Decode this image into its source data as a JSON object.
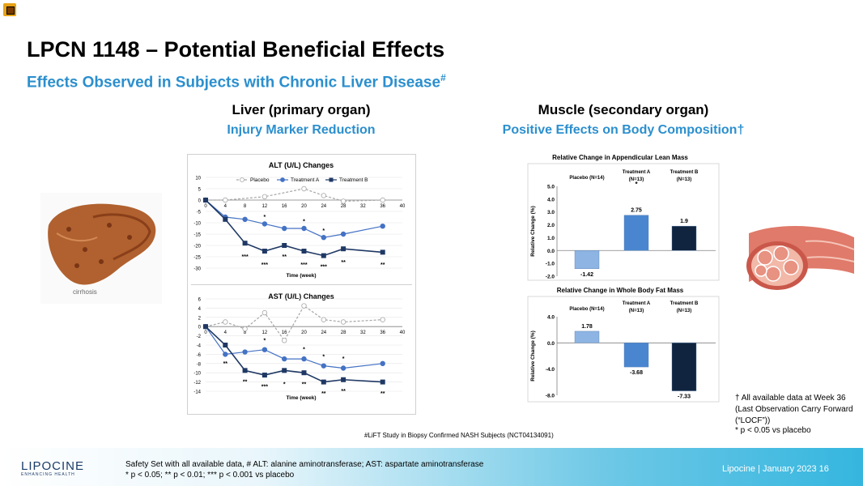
{
  "slide": {
    "title": "LPCN 1148 – Potential Beneficial Effects",
    "subtitle": "Effects Observed in Subjects with Chronic Liver Disease",
    "subtitle_mark": "#",
    "liver_heading": "Liver  (primary organ)",
    "liver_subheading": "Injury Marker Reduction",
    "muscle_heading": "Muscle  (secondary organ)",
    "muscle_subheading": "Positive Effects on Body Composition†",
    "liver_image_caption": "cirrhosis",
    "study_note": "#LiFT Study in Biopsy Confirmed NASH Subjects (NCT04134091)",
    "right_note_1": "† All available data at Week 36 (Last Observation Carry Forward (“LOCF”))",
    "right_note_2": "* p < 0.05 vs placebo",
    "footer_line_1": "Safety Set with all available data,  # ALT:  alanine aminotransferase; AST: aspartate aminotransferase",
    "footer_line_2": "* p < 0.05; ** p < 0.01; *** p < 0.001 vs placebo",
    "brand": "LIPOCINE",
    "brand_tagline": "ENHANCING HEALTH",
    "footer_right": "Lipocine  |   January 2023     16"
  },
  "colors": {
    "placebo": "#a6a6a6",
    "treatment_a": "#4472c4",
    "treatment_b": "#1f3864",
    "accent": "#2b8fce",
    "bar_placebo": "#8db4e2",
    "bar_a": "#4a86d0",
    "bar_b": "#10243f"
  },
  "chart_data": [
    {
      "type": "line",
      "title": "ALT (U/L) Changes",
      "xlabel": "Time (week)",
      "x": [
        0,
        4,
        8,
        12,
        16,
        20,
        24,
        28,
        32,
        36
      ],
      "xticks": [
        0,
        4,
        8,
        12,
        16,
        20,
        24,
        28,
        32,
        36,
        40
      ],
      "yticks": [
        10,
        5,
        0,
        -5,
        -10,
        -15,
        -20,
        -25,
        -30
      ],
      "ylim": [
        -30,
        10
      ],
      "legend": "top",
      "series": [
        {
          "name": "Placebo",
          "x": [
            0,
            4,
            12,
            20,
            24,
            28,
            36
          ],
          "values": [
            0,
            0,
            1.5,
            5,
            2,
            -0.5,
            0
          ]
        },
        {
          "name": "Treatment A",
          "x": [
            0,
            4,
            8,
            12,
            16,
            20,
            24,
            28,
            36
          ],
          "values": [
            0,
            -7.5,
            -8.5,
            -10.5,
            -12.5,
            -12.5,
            -16.5,
            -15,
            -11.5
          ]
        },
        {
          "name": "Treatment B",
          "x": [
            0,
            4,
            8,
            12,
            16,
            20,
            24,
            28,
            36
          ],
          "values": [
            0,
            -8.5,
            -19,
            -22.5,
            -20,
            -22.5,
            -24.5,
            -21.5,
            -23
          ]
        }
      ],
      "annotations": [
        {
          "x": 12,
          "y": -7.5,
          "text": "*"
        },
        {
          "x": 20,
          "y": -9.5,
          "text": "*"
        },
        {
          "x": 24,
          "y": -13.5,
          "text": "*"
        },
        {
          "x": 8,
          "y": -25,
          "text": "***"
        },
        {
          "x": 12,
          "y": -28.5,
          "text": "***"
        },
        {
          "x": 16,
          "y": -25,
          "text": "**"
        },
        {
          "x": 20,
          "y": -28.5,
          "text": "***"
        },
        {
          "x": 24,
          "y": -29.5,
          "text": "***"
        },
        {
          "x": 28,
          "y": -27.5,
          "text": "**"
        },
        {
          "x": 36,
          "y": -28.5,
          "text": "**"
        }
      ]
    },
    {
      "type": "line",
      "title": "AST (U/L) Changes",
      "xlabel": "Time (week)",
      "x": [
        0,
        4,
        8,
        12,
        16,
        20,
        24,
        28,
        32,
        36
      ],
      "xticks": [
        0,
        4,
        8,
        12,
        16,
        20,
        24,
        28,
        32,
        36,
        40
      ],
      "yticks": [
        6,
        4,
        2,
        0,
        -2,
        -4,
        -6,
        -8,
        -10,
        -12,
        -14
      ],
      "ylim": [
        -14,
        6
      ],
      "series": [
        {
          "name": "Placebo",
          "x": [
            0,
            4,
            8,
            12,
            16,
            20,
            24,
            28,
            36
          ],
          "values": [
            0,
            1,
            -0.5,
            3,
            -3,
            4.5,
            1.5,
            1,
            1.5
          ]
        },
        {
          "name": "Treatment A",
          "x": [
            0,
            4,
            8,
            12,
            16,
            20,
            24,
            28,
            36
          ],
          "values": [
            0,
            -6,
            -5.5,
            -5,
            -7,
            -7,
            -8.5,
            -9,
            -8
          ]
        },
        {
          "name": "Treatment B",
          "x": [
            0,
            4,
            8,
            12,
            16,
            20,
            24,
            28,
            36
          ],
          "values": [
            0,
            -4,
            -9.5,
            -10.5,
            -9.5,
            -10,
            -12,
            -11.5,
            -12
          ]
        }
      ],
      "annotations": [
        {
          "x": 4,
          "y": -8,
          "text": "**"
        },
        {
          "x": 12,
          "y": -3,
          "text": "*"
        },
        {
          "x": 20,
          "y": -5,
          "text": "*"
        },
        {
          "x": 24,
          "y": -6.5,
          "text": "*"
        },
        {
          "x": 28,
          "y": -7,
          "text": "*"
        },
        {
          "x": 8,
          "y": -12,
          "text": "**"
        },
        {
          "x": 12,
          "y": -13,
          "text": "***"
        },
        {
          "x": 16,
          "y": -12.5,
          "text": "*"
        },
        {
          "x": 20,
          "y": -12.5,
          "text": "**"
        },
        {
          "x": 24,
          "y": -14.5,
          "text": "**"
        },
        {
          "x": 28,
          "y": -14,
          "text": "**"
        },
        {
          "x": 36,
          "y": -14.5,
          "text": "**"
        }
      ]
    },
    {
      "type": "bar",
      "title": "Relative Change in Appendicular Lean Mass",
      "ylabel": "Relative Change (%)",
      "categories": [
        "Placebo (N=14)",
        "Treatment A (N=13)",
        "Treatment B (N=13)"
      ],
      "values": [
        -1.42,
        2.75,
        1.9
      ],
      "labels": [
        "-1.42",
        "2.75",
        "1.9"
      ],
      "ylim": [
        -2,
        5
      ],
      "yticks": [
        "5.0",
        "4.0",
        "3.0",
        "2.0",
        "1.0",
        "0.0",
        "-1.0",
        "-2.0"
      ],
      "significance": [
        "",
        "*",
        ""
      ]
    },
    {
      "type": "bar",
      "title": "Relative Change in Whole Body Fat Mass",
      "ylabel": "Relative Change (%)",
      "categories": [
        "Placebo (N=14)",
        "Treatment A (N=13)",
        "Treatment B (N=13)"
      ],
      "values": [
        1.78,
        -3.68,
        -7.33
      ],
      "labels": [
        "1.78",
        "-3.68",
        "-7.33"
      ],
      "ylim": [
        -8,
        4
      ],
      "yticks": [
        "4.0",
        "0.0",
        "-4.0",
        "-8.0"
      ]
    }
  ]
}
